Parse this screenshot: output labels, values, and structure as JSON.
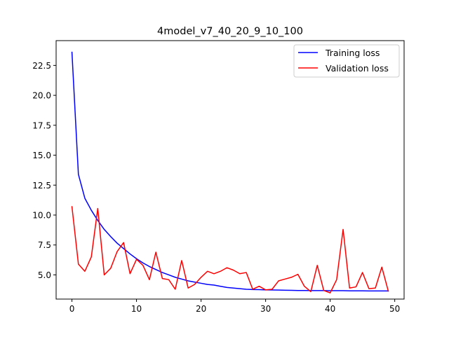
{
  "chart_data": {
    "type": "line",
    "title": "4model_v7_40_20_9_10_100",
    "xlabel": "",
    "ylabel": "",
    "xlim": [
      -2.45,
      51.45
    ],
    "ylim": [
      2.98,
      24.57
    ],
    "xticks": [
      0,
      10,
      20,
      30,
      40,
      50
    ],
    "yticks": [
      5.0,
      7.5,
      10.0,
      12.5,
      15.0,
      17.5,
      20.0,
      22.5
    ],
    "grid": false,
    "legend_position": "top-right",
    "series": [
      {
        "name": "Training loss",
        "color": "#0000ff",
        "x": [
          0,
          1,
          2,
          3,
          4,
          5,
          6,
          7,
          8,
          9,
          10,
          11,
          12,
          13,
          14,
          15,
          16,
          17,
          18,
          19,
          20,
          21,
          22,
          23,
          24,
          25,
          26,
          27,
          28,
          29,
          30,
          31,
          32,
          33,
          34,
          35,
          36,
          37,
          38,
          39,
          40,
          41,
          42,
          43,
          44,
          45,
          46,
          47,
          48,
          49
        ],
        "y": [
          23.6,
          13.4,
          11.4,
          10.4,
          9.55,
          8.8,
          8.2,
          7.65,
          7.2,
          6.75,
          6.35,
          6.0,
          5.7,
          5.45,
          5.2,
          5.0,
          4.8,
          4.65,
          4.5,
          4.4,
          4.3,
          4.2,
          4.15,
          4.05,
          3.95,
          3.9,
          3.85,
          3.8,
          3.78,
          3.77,
          3.75,
          3.74,
          3.73,
          3.72,
          3.71,
          3.7,
          3.7,
          3.69,
          3.69,
          3.69,
          3.68,
          3.68,
          3.68,
          3.67,
          3.67,
          3.67,
          3.66,
          3.66,
          3.66,
          3.66
        ]
      },
      {
        "name": "Validation loss",
        "color": "#ff0000",
        "x": [
          0,
          1,
          2,
          3,
          4,
          5,
          6,
          7,
          8,
          9,
          10,
          11,
          12,
          13,
          14,
          15,
          16,
          17,
          18,
          19,
          20,
          21,
          22,
          23,
          24,
          25,
          26,
          27,
          28,
          29,
          30,
          31,
          32,
          33,
          34,
          35,
          36,
          37,
          38,
          39,
          40,
          41,
          42,
          43,
          44,
          45,
          46,
          47,
          48,
          49
        ],
        "y": [
          10.7,
          5.9,
          5.3,
          6.5,
          10.55,
          5.0,
          5.55,
          6.95,
          7.7,
          5.1,
          6.3,
          5.8,
          4.6,
          6.9,
          4.7,
          4.6,
          3.8,
          6.2,
          3.9,
          4.2,
          4.8,
          5.3,
          5.1,
          5.3,
          5.6,
          5.4,
          5.1,
          5.2,
          3.8,
          4.05,
          3.75,
          3.8,
          4.5,
          4.65,
          4.8,
          5.05,
          4.05,
          3.6,
          5.8,
          3.7,
          3.5,
          4.6,
          8.8,
          3.9,
          4.0,
          5.2,
          3.85,
          3.9,
          5.65,
          3.65
        ]
      }
    ]
  }
}
